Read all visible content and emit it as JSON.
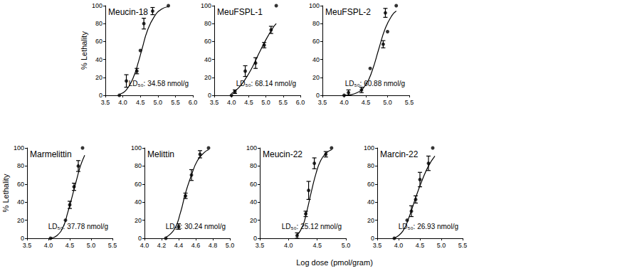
{
  "chart_data": [
    {
      "type": "scatter",
      "title": "Meucin-18",
      "ylabel": "% Lethality",
      "annotation": "LD₅₀: 34.58 nmol/g",
      "xlim": [
        3.5,
        6
      ],
      "xticks": [
        3.5,
        {
          "value": 4,
          "label": "4.0"
        },
        4.5,
        {
          "value": 5,
          "label": "5.0"
        },
        5.5,
        {
          "value": 6,
          "label": "6.0"
        }
      ],
      "ylim": [
        0,
        100
      ],
      "yticks": [
        0,
        20,
        40,
        60,
        80,
        100
      ],
      "series": [
        {
          "type": "scatter",
          "color": "#000000",
          "marker": "circle",
          "x": [
            3.9,
            4.1,
            4.4,
            4.5,
            4.6,
            4.85,
            5.3
          ],
          "values": [
            0,
            16,
            27,
            50,
            80,
            94,
            100
          ],
          "error": [
            null,
            7,
            3,
            null,
            6,
            4,
            null
          ]
        },
        {
          "type": "line",
          "color": "#000000",
          "marker": "none",
          "x": [
            3.9,
            4.1,
            4.3,
            4.45,
            4.55,
            4.7,
            4.9,
            5.1,
            5.3
          ],
          "values": [
            1,
            6,
            20,
            38,
            52,
            72,
            88,
            96,
            99
          ]
        }
      ]
    },
    {
      "type": "scatter",
      "title": "MeuFSPL-1",
      "annotation": "LD₅₀: 68.14 nmol/g",
      "xlim": [
        3.5,
        6
      ],
      "xticks": [
        3.5,
        {
          "value": 4,
          "label": "4.0"
        },
        4.5,
        {
          "value": 5,
          "label": "5.0"
        },
        5.5,
        {
          "value": 6,
          "label": "6.0"
        }
      ],
      "ylim": [
        0,
        100
      ],
      "yticks": [
        0,
        20,
        40,
        60,
        80,
        100
      ],
      "series": [
        {
          "type": "scatter",
          "color": "#000000",
          "marker": "circle",
          "x": [
            4.0,
            4.1,
            4.4,
            4.7,
            4.95,
            5.15,
            5.3
          ],
          "values": [
            0,
            4,
            27,
            36,
            56,
            73,
            100
          ],
          "error": [
            null,
            2,
            6,
            6,
            3,
            4,
            null
          ]
        },
        {
          "type": "line",
          "color": "#000000",
          "marker": "none",
          "x": [
            4.0,
            4.2,
            4.4,
            4.6,
            4.8,
            5.0,
            5.2,
            5.3
          ],
          "values": [
            2,
            8,
            18,
            31,
            47,
            62,
            75,
            80
          ]
        }
      ]
    },
    {
      "type": "scatter",
      "title": "MeuFSPL-2",
      "annotation": "LD₅₀: 60.88 nmol/g",
      "xlim": [
        3.5,
        5.5
      ],
      "xticks": [
        3.5,
        {
          "value": 4,
          "label": "4.0"
        },
        4.5,
        {
          "value": 5,
          "label": "5.0"
        },
        5.5
      ],
      "ylim": [
        0,
        100
      ],
      "yticks": [
        0,
        20,
        40,
        60,
        80,
        100
      ],
      "series": [
        {
          "type": "scatter",
          "color": "#000000",
          "marker": "circle",
          "x": [
            4.0,
            4.1,
            4.4,
            4.6,
            4.9,
            4.95,
            5.0,
            5.2
          ],
          "values": [
            0,
            3,
            6,
            30,
            57,
            92,
            71,
            100
          ],
          "error": [
            null,
            3,
            3,
            null,
            4,
            5,
            null,
            null
          ]
        },
        {
          "type": "line",
          "color": "#000000",
          "marker": "none",
          "x": [
            4.0,
            4.3,
            4.5,
            4.65,
            4.8,
            4.95,
            5.1,
            5.2
          ],
          "values": [
            0,
            3,
            12,
            28,
            52,
            75,
            89,
            94
          ]
        }
      ]
    },
    {
      "type": "scatter",
      "title": "Marmelittin",
      "ylabel": "% Lethality",
      "annotation": "LD₅₀: 37.78 nmol/g",
      "xlim": [
        3.5,
        5.5
      ],
      "xticks": [
        3.5,
        {
          "value": 4,
          "label": "4.0"
        },
        4.5,
        {
          "value": 5,
          "label": "5.0"
        },
        5.5
      ],
      "ylim": [
        0,
        100
      ],
      "yticks": [
        0,
        20,
        40,
        60,
        80,
        100
      ],
      "series": [
        {
          "type": "scatter",
          "color": "#000000",
          "marker": "circle",
          "x": [
            4.05,
            4.4,
            4.5,
            4.6,
            4.7,
            4.8
          ],
          "values": [
            0,
            20,
            37,
            57,
            80,
            100
          ],
          "error": [
            null,
            null,
            4,
            4,
            6,
            null
          ]
        },
        {
          "type": "line",
          "color": "#000000",
          "marker": "none",
          "x": [
            4.05,
            4.2,
            4.35,
            4.45,
            4.55,
            4.65,
            4.75,
            4.85
          ],
          "values": [
            0,
            3,
            13,
            28,
            45,
            63,
            80,
            92
          ]
        }
      ]
    },
    {
      "type": "scatter",
      "title": "Melittin",
      "annotation": "LD₅₀: 30.24 nmol/g",
      "xlim": [
        4,
        5
      ],
      "xticks": [
        {
          "value": 4,
          "label": "4.0"
        },
        4.2,
        4.4,
        4.6,
        4.8,
        {
          "value": 5,
          "label": "5.0"
        }
      ],
      "ylim": [
        0,
        100
      ],
      "yticks": [
        0,
        20,
        40,
        60,
        80,
        100
      ],
      "series": [
        {
          "type": "scatter",
          "color": "#000000",
          "marker": "circle",
          "x": [
            4.25,
            4.4,
            4.48,
            4.55,
            4.65,
            4.75
          ],
          "values": [
            0,
            13,
            47,
            70,
            93,
            100
          ],
          "error": [
            null,
            3,
            3,
            6,
            4,
            null
          ]
        },
        {
          "type": "line",
          "color": "#000000",
          "marker": "none",
          "x": [
            4.25,
            4.35,
            4.42,
            4.48,
            4.55,
            4.62,
            4.7,
            4.75
          ],
          "values": [
            1,
            10,
            28,
            50,
            70,
            86,
            95,
            98
          ]
        }
      ]
    },
    {
      "type": "scatter",
      "title": "Meucin-22",
      "annotation": "LD₅₀: 25.12 nmol/g",
      "xlim": [
        3.5,
        5
      ],
      "xticks": [
        3.5,
        {
          "value": 4,
          "label": "4.0"
        },
        4.5,
        {
          "value": 5,
          "label": "5.0"
        }
      ],
      "ylim": [
        0,
        100
      ],
      "yticks": [
        0,
        20,
        40,
        60,
        80,
        100
      ],
      "series": [
        {
          "type": "scatter",
          "color": "#000000",
          "marker": "circle",
          "x": [
            4.15,
            4.3,
            4.35,
            4.45,
            4.65,
            4.75
          ],
          "values": [
            3,
            27,
            53,
            83,
            93,
            100
          ],
          "error": [
            3,
            3,
            10,
            6,
            3,
            null
          ]
        },
        {
          "type": "line",
          "color": "#000000",
          "marker": "none",
          "x": [
            4.15,
            4.25,
            4.32,
            4.4,
            4.48,
            4.56,
            4.65,
            4.75
          ],
          "values": [
            3,
            14,
            30,
            52,
            72,
            86,
            94,
            98
          ]
        }
      ]
    },
    {
      "type": "scatter",
      "title": "Marcin-22",
      "annotation": "LD₅₀: 26.93 nmol/g",
      "xlim": [
        3.5,
        5.5
      ],
      "xticks": [
        3.5,
        {
          "value": 4,
          "label": "4.0"
        },
        4.5,
        {
          "value": 5,
          "label": "5.0"
        },
        5.5
      ],
      "ylim": [
        0,
        100
      ],
      "yticks": [
        0,
        20,
        40,
        60,
        80,
        100
      ],
      "series": [
        {
          "type": "scatter",
          "color": "#000000",
          "marker": "circle",
          "x": [
            3.9,
            4.2,
            4.3,
            4.4,
            4.5,
            4.7,
            4.8
          ],
          "values": [
            0,
            20,
            30,
            43,
            65,
            83,
            100
          ],
          "error": [
            null,
            null,
            6,
            4,
            8,
            8,
            null
          ]
        },
        {
          "type": "line",
          "color": "#000000",
          "marker": "none",
          "x": [
            3.9,
            4.1,
            4.25,
            4.4,
            4.55,
            4.7,
            4.85
          ],
          "values": [
            0,
            8,
            24,
            45,
            64,
            80,
            91
          ]
        }
      ]
    }
  ],
  "xlabel": "Log dose (pmol/gram)"
}
